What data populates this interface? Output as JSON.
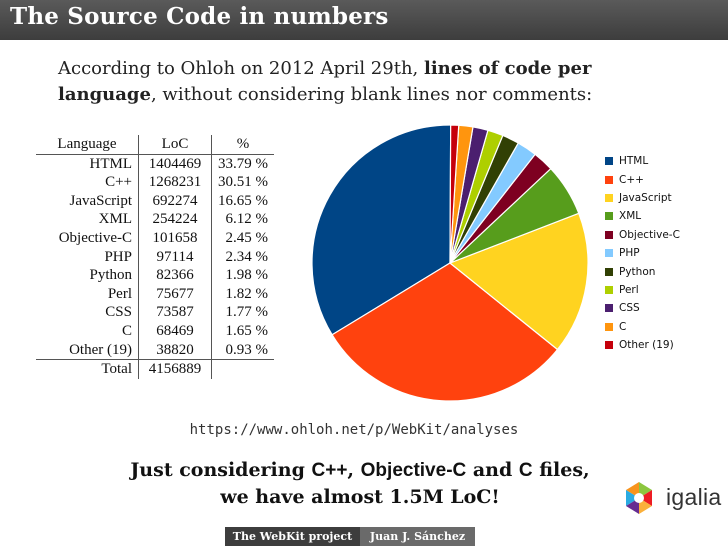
{
  "title": "The Source Code in numbers",
  "intro": {
    "part1": "According to Ohloh on 2012 April 29th, ",
    "bold": "lines of code per language",
    "part2": ", without considering blank lines nor comments:"
  },
  "table": {
    "headers": [
      "Language",
      "LoC",
      "%"
    ],
    "rows": [
      [
        "HTML",
        "1404469",
        "33.79 %"
      ],
      [
        "C++",
        "1268231",
        "30.51 %"
      ],
      [
        "JavaScript",
        "692274",
        "16.65 %"
      ],
      [
        "XML",
        "254224",
        "6.12 %"
      ],
      [
        "Objective-C",
        "101658",
        "2.45 %"
      ],
      [
        "PHP",
        "97114",
        "2.34 %"
      ],
      [
        "Python",
        "82366",
        "1.98 %"
      ],
      [
        "Perl",
        "75677",
        "1.82 %"
      ],
      [
        "CSS",
        "73587",
        "1.77 %"
      ],
      [
        "C",
        "68469",
        "1.65 %"
      ],
      [
        "Other (19)",
        "38820",
        "0.93 %"
      ]
    ],
    "total_label": "Total",
    "total_value": "4156889"
  },
  "chart_data": {
    "type": "pie",
    "categories": [
      "HTML",
      "C++",
      "JavaScript",
      "XML",
      "Objective-C",
      "PHP",
      "Python",
      "Perl",
      "CSS",
      "C",
      "Other (19)"
    ],
    "values": [
      33.79,
      30.51,
      16.65,
      6.12,
      2.45,
      2.34,
      1.98,
      1.82,
      1.77,
      1.65,
      0.93
    ],
    "colors": [
      "#004586",
      "#ff420e",
      "#ffd320",
      "#579d1c",
      "#7e0021",
      "#83caff",
      "#314004",
      "#aecf00",
      "#4b1f6f",
      "#ff950e",
      "#c5000b"
    ],
    "legend": "right"
  },
  "url": "https://www.ohloh.net/p/WebKit/analyses",
  "conclusion": {
    "p1": "Just considering ",
    "s1": "C++",
    "p2": ", ",
    "s2": "Objective-C",
    "p3": " and ",
    "s3": "C",
    "p4": " files,",
    "line2": "we have almost 1.5M LoC!"
  },
  "logo_text": "igalia",
  "footer": {
    "left": "The WebKit project",
    "right": "Juan J. Sánchez"
  }
}
